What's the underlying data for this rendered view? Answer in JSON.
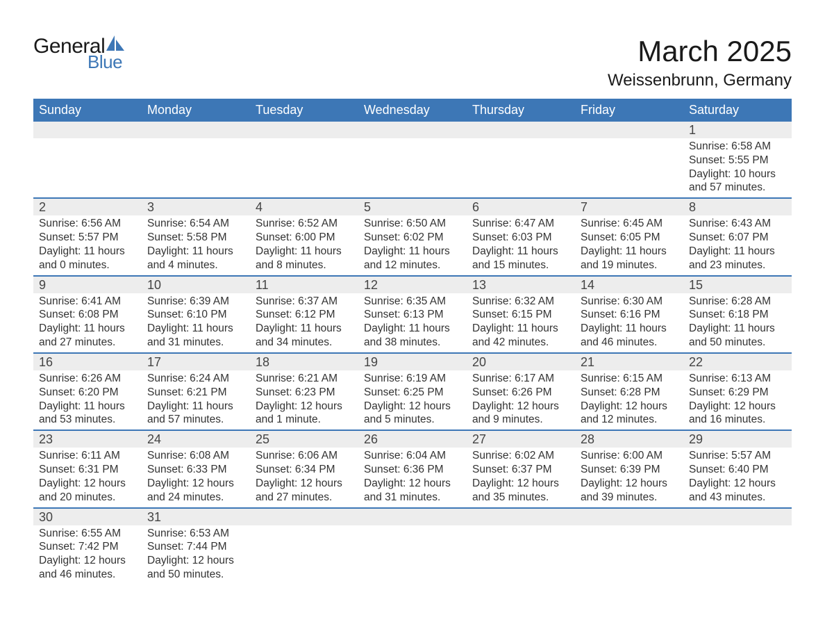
{
  "brand": {
    "word1": "General",
    "word2": "Blue",
    "accent": "#3d77b6"
  },
  "title": "March 2025",
  "location": "Weissenbrunn, Germany",
  "colors": {
    "header_bg": "#3d77b6",
    "header_text": "#ffffff",
    "daynum_bg": "#ededed",
    "row_divider": "#3d77b6",
    "body_text": "#333333",
    "page_bg": "#ffffff"
  },
  "typography": {
    "title_fontsize": 42,
    "location_fontsize": 24,
    "header_fontsize": 18,
    "daynum_fontsize": 18,
    "cell_fontsize": 15.5
  },
  "day_headers": [
    "Sunday",
    "Monday",
    "Tuesday",
    "Wednesday",
    "Thursday",
    "Friday",
    "Saturday"
  ],
  "weeks": [
    [
      null,
      null,
      null,
      null,
      null,
      null,
      {
        "n": "1",
        "sunrise": "Sunrise: 6:58 AM",
        "sunset": "Sunset: 5:55 PM",
        "d1": "Daylight: 10 hours",
        "d2": "and 57 minutes."
      }
    ],
    [
      {
        "n": "2",
        "sunrise": "Sunrise: 6:56 AM",
        "sunset": "Sunset: 5:57 PM",
        "d1": "Daylight: 11 hours",
        "d2": "and 0 minutes."
      },
      {
        "n": "3",
        "sunrise": "Sunrise: 6:54 AM",
        "sunset": "Sunset: 5:58 PM",
        "d1": "Daylight: 11 hours",
        "d2": "and 4 minutes."
      },
      {
        "n": "4",
        "sunrise": "Sunrise: 6:52 AM",
        "sunset": "Sunset: 6:00 PM",
        "d1": "Daylight: 11 hours",
        "d2": "and 8 minutes."
      },
      {
        "n": "5",
        "sunrise": "Sunrise: 6:50 AM",
        "sunset": "Sunset: 6:02 PM",
        "d1": "Daylight: 11 hours",
        "d2": "and 12 minutes."
      },
      {
        "n": "6",
        "sunrise": "Sunrise: 6:47 AM",
        "sunset": "Sunset: 6:03 PM",
        "d1": "Daylight: 11 hours",
        "d2": "and 15 minutes."
      },
      {
        "n": "7",
        "sunrise": "Sunrise: 6:45 AM",
        "sunset": "Sunset: 6:05 PM",
        "d1": "Daylight: 11 hours",
        "d2": "and 19 minutes."
      },
      {
        "n": "8",
        "sunrise": "Sunrise: 6:43 AM",
        "sunset": "Sunset: 6:07 PM",
        "d1": "Daylight: 11 hours",
        "d2": "and 23 minutes."
      }
    ],
    [
      {
        "n": "9",
        "sunrise": "Sunrise: 6:41 AM",
        "sunset": "Sunset: 6:08 PM",
        "d1": "Daylight: 11 hours",
        "d2": "and 27 minutes."
      },
      {
        "n": "10",
        "sunrise": "Sunrise: 6:39 AM",
        "sunset": "Sunset: 6:10 PM",
        "d1": "Daylight: 11 hours",
        "d2": "and 31 minutes."
      },
      {
        "n": "11",
        "sunrise": "Sunrise: 6:37 AM",
        "sunset": "Sunset: 6:12 PM",
        "d1": "Daylight: 11 hours",
        "d2": "and 34 minutes."
      },
      {
        "n": "12",
        "sunrise": "Sunrise: 6:35 AM",
        "sunset": "Sunset: 6:13 PM",
        "d1": "Daylight: 11 hours",
        "d2": "and 38 minutes."
      },
      {
        "n": "13",
        "sunrise": "Sunrise: 6:32 AM",
        "sunset": "Sunset: 6:15 PM",
        "d1": "Daylight: 11 hours",
        "d2": "and 42 minutes."
      },
      {
        "n": "14",
        "sunrise": "Sunrise: 6:30 AM",
        "sunset": "Sunset: 6:16 PM",
        "d1": "Daylight: 11 hours",
        "d2": "and 46 minutes."
      },
      {
        "n": "15",
        "sunrise": "Sunrise: 6:28 AM",
        "sunset": "Sunset: 6:18 PM",
        "d1": "Daylight: 11 hours",
        "d2": "and 50 minutes."
      }
    ],
    [
      {
        "n": "16",
        "sunrise": "Sunrise: 6:26 AM",
        "sunset": "Sunset: 6:20 PM",
        "d1": "Daylight: 11 hours",
        "d2": "and 53 minutes."
      },
      {
        "n": "17",
        "sunrise": "Sunrise: 6:24 AM",
        "sunset": "Sunset: 6:21 PM",
        "d1": "Daylight: 11 hours",
        "d2": "and 57 minutes."
      },
      {
        "n": "18",
        "sunrise": "Sunrise: 6:21 AM",
        "sunset": "Sunset: 6:23 PM",
        "d1": "Daylight: 12 hours",
        "d2": "and 1 minute."
      },
      {
        "n": "19",
        "sunrise": "Sunrise: 6:19 AM",
        "sunset": "Sunset: 6:25 PM",
        "d1": "Daylight: 12 hours",
        "d2": "and 5 minutes."
      },
      {
        "n": "20",
        "sunrise": "Sunrise: 6:17 AM",
        "sunset": "Sunset: 6:26 PM",
        "d1": "Daylight: 12 hours",
        "d2": "and 9 minutes."
      },
      {
        "n": "21",
        "sunrise": "Sunrise: 6:15 AM",
        "sunset": "Sunset: 6:28 PM",
        "d1": "Daylight: 12 hours",
        "d2": "and 12 minutes."
      },
      {
        "n": "22",
        "sunrise": "Sunrise: 6:13 AM",
        "sunset": "Sunset: 6:29 PM",
        "d1": "Daylight: 12 hours",
        "d2": "and 16 minutes."
      }
    ],
    [
      {
        "n": "23",
        "sunrise": "Sunrise: 6:11 AM",
        "sunset": "Sunset: 6:31 PM",
        "d1": "Daylight: 12 hours",
        "d2": "and 20 minutes."
      },
      {
        "n": "24",
        "sunrise": "Sunrise: 6:08 AM",
        "sunset": "Sunset: 6:33 PM",
        "d1": "Daylight: 12 hours",
        "d2": "and 24 minutes."
      },
      {
        "n": "25",
        "sunrise": "Sunrise: 6:06 AM",
        "sunset": "Sunset: 6:34 PM",
        "d1": "Daylight: 12 hours",
        "d2": "and 27 minutes."
      },
      {
        "n": "26",
        "sunrise": "Sunrise: 6:04 AM",
        "sunset": "Sunset: 6:36 PM",
        "d1": "Daylight: 12 hours",
        "d2": "and 31 minutes."
      },
      {
        "n": "27",
        "sunrise": "Sunrise: 6:02 AM",
        "sunset": "Sunset: 6:37 PM",
        "d1": "Daylight: 12 hours",
        "d2": "and 35 minutes."
      },
      {
        "n": "28",
        "sunrise": "Sunrise: 6:00 AM",
        "sunset": "Sunset: 6:39 PM",
        "d1": "Daylight: 12 hours",
        "d2": "and 39 minutes."
      },
      {
        "n": "29",
        "sunrise": "Sunrise: 5:57 AM",
        "sunset": "Sunset: 6:40 PM",
        "d1": "Daylight: 12 hours",
        "d2": "and 43 minutes."
      }
    ],
    [
      {
        "n": "30",
        "sunrise": "Sunrise: 6:55 AM",
        "sunset": "Sunset: 7:42 PM",
        "d1": "Daylight: 12 hours",
        "d2": "and 46 minutes."
      },
      {
        "n": "31",
        "sunrise": "Sunrise: 6:53 AM",
        "sunset": "Sunset: 7:44 PM",
        "d1": "Daylight: 12 hours",
        "d2": "and 50 minutes."
      },
      null,
      null,
      null,
      null,
      null
    ]
  ]
}
